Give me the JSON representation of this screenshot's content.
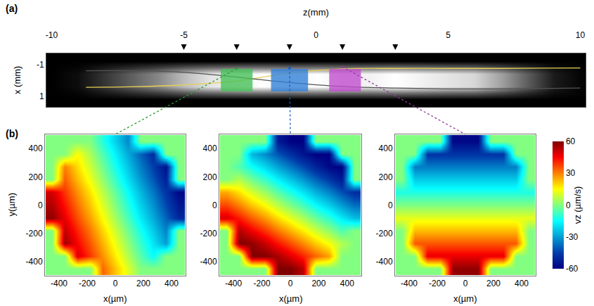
{
  "chart_data": [
    {
      "type": "image",
      "panel_label": "(a)",
      "x_label": "z(mm)",
      "y_label": "x (mm)",
      "xlim": [
        -10.2,
        10.2
      ],
      "xticks": [
        -10,
        -5,
        0,
        5,
        10
      ],
      "ylim": [
        1.7,
        -1.7
      ],
      "yticks": [
        -1,
        1
      ],
      "grid": false,
      "x": [
        -10,
        -9,
        -8,
        -7,
        -6,
        -5,
        -4,
        -3,
        -2,
        -1,
        0,
        1,
        2,
        3,
        4,
        5,
        6,
        7,
        8,
        9,
        10
      ],
      "y": [
        -1.6,
        -1.2,
        -0.8,
        -0.4,
        0,
        0.4,
        0.8,
        1.2,
        1.6
      ],
      "cells": [
        [
          0,
          0,
          0,
          0,
          0,
          0,
          0,
          0,
          0,
          0,
          0,
          0,
          0,
          0,
          0,
          0,
          0,
          0,
          0,
          0,
          0
        ],
        [
          0,
          0,
          0,
          0,
          0,
          0,
          0,
          0,
          0,
          0,
          0,
          0,
          0,
          0,
          0,
          0,
          0,
          0,
          0,
          0,
          0
        ],
        [
          0,
          0.02,
          0.09,
          0.16,
          0.23,
          0.32,
          0.38,
          0.41,
          0.43,
          0.41,
          0.43,
          0.41,
          0.41,
          0.43,
          0.41,
          0.38,
          0.36,
          0.27,
          0.16,
          0.05,
          0.01
        ],
        [
          0,
          0.05,
          0.2,
          0.35,
          0.5,
          0.7,
          0.85,
          0.9,
          0.95,
          0.9,
          0.95,
          0.9,
          0.9,
          0.95,
          0.9,
          0.85,
          0.8,
          0.6,
          0.35,
          0.1,
          0.02
        ],
        [
          0,
          0.05,
          0.2,
          0.35,
          0.5,
          0.7,
          0.85,
          0.9,
          0.95,
          0.9,
          0.95,
          0.9,
          0.9,
          0.95,
          0.9,
          0.85,
          0.8,
          0.6,
          0.35,
          0.1,
          0.02
        ],
        [
          0,
          0.05,
          0.2,
          0.35,
          0.5,
          0.7,
          0.85,
          0.9,
          0.95,
          0.9,
          0.95,
          0.9,
          0.9,
          0.95,
          0.9,
          0.85,
          0.8,
          0.6,
          0.35,
          0.1,
          0.02
        ],
        [
          0,
          0.02,
          0.09,
          0.16,
          0.23,
          0.32,
          0.38,
          0.41,
          0.43,
          0.41,
          0.43,
          0.41,
          0.41,
          0.43,
          0.41,
          0.38,
          0.36,
          0.27,
          0.16,
          0.05,
          0.01
        ],
        [
          0,
          0,
          0,
          0,
          0,
          0,
          0,
          0,
          0,
          0,
          0,
          0,
          0,
          0,
          0,
          0,
          0,
          0,
          0,
          0,
          0
        ],
        [
          0,
          0,
          0,
          0,
          0,
          0,
          0,
          0,
          0,
          0,
          0,
          0,
          0,
          0,
          0,
          0,
          0,
          0,
          0,
          0,
          0
        ]
      ],
      "series": [
        {
          "color": "#e6cf55",
          "x": [
            -8.7,
            -7,
            -5,
            -3,
            -1,
            1,
            3,
            5,
            7,
            10
          ],
          "values": [
            0.45,
            0.42,
            0.3,
            0.05,
            -0.45,
            -0.72,
            -0.75,
            -0.75,
            -0.75,
            -0.78
          ]
        },
        {
          "color": "#555555",
          "x": [
            -8.7,
            -7,
            -5,
            -3,
            -1,
            1,
            3,
            5,
            7,
            10
          ],
          "values": [
            -0.6,
            -0.6,
            -0.5,
            -0.2,
            0.15,
            0.4,
            0.5,
            0.55,
            0.55,
            0.5
          ]
        }
      ],
      "highlights": [
        {
          "from": -3.6,
          "to": -2.4,
          "color": "#43c055"
        },
        {
          "from": -1.7,
          "to": -0.3,
          "color": "#2f7fd8"
        },
        {
          "from": 0.5,
          "to": 1.7,
          "color": "#c04ad0"
        }
      ],
      "markers_z": [
        -5,
        -3,
        -1,
        1,
        3
      ]
    },
    {
      "type": "heatmap",
      "panel_label": "(b)",
      "x_label": "x(µm)",
      "y_label": "y(µm)",
      "xlim": [
        -500,
        500
      ],
      "xticks": [
        -400,
        -200,
        0,
        200,
        400
      ],
      "ylim": [
        -500,
        500
      ],
      "yticks": [
        -400,
        -200,
        0,
        200,
        400
      ],
      "grid": false,
      "x": [
        -450,
        -360,
        -270,
        -180,
        -90,
        0,
        90,
        180,
        270,
        360,
        450
      ],
      "y": [
        -450,
        -360,
        -270,
        -180,
        -90,
        0,
        90,
        180,
        270,
        360,
        450
      ],
      "cells": [
        [
          0,
          0,
          0,
          0,
          33,
          22,
          11,
          0,
          0,
          0,
          0
        ],
        [
          0,
          0,
          49,
          39,
          28,
          17,
          6,
          -5,
          -15,
          0,
          0
        ],
        [
          0,
          56,
          45,
          35,
          24,
          13,
          2,
          -9,
          -19,
          -30,
          0
        ],
        [
          0,
          52,
          41,
          31,
          20,
          9,
          -2,
          -13,
          -23,
          -34,
          0
        ],
        [
          58,
          47,
          36,
          26,
          15,
          4,
          -7,
          -18,
          -28,
          -39,
          -50
        ],
        [
          54,
          43,
          32,
          22,
          11,
          0,
          -11,
          -22,
          -32,
          -43,
          -54
        ],
        [
          50,
          39,
          28,
          18,
          7,
          -4,
          -15,
          -26,
          -36,
          -47,
          -58
        ],
        [
          0,
          34,
          23,
          13,
          2,
          -9,
          -20,
          -31,
          -41,
          -52,
          0
        ],
        [
          0,
          30,
          19,
          9,
          -2,
          -13,
          -24,
          -35,
          -45,
          -56,
          0
        ],
        [
          0,
          0,
          15,
          5,
          -6,
          -17,
          -28,
          -39,
          -49,
          0,
          0
        ],
        [
          0,
          0,
          0,
          0,
          -11,
          -22,
          -33,
          0,
          0,
          0,
          0
        ]
      ],
      "link": {
        "z": -3,
        "x": -0.73,
        "color": "#2f9a3c",
        "target": {
          "x": 0,
          "y": 500
        }
      }
    },
    {
      "type": "heatmap",
      "x_label": "x(µm)",
      "xlim": [
        -500,
        500
      ],
      "xticks": [
        -400,
        -200,
        0,
        200,
        400
      ],
      "ylim": [
        -500,
        500
      ],
      "yticks": [
        -400,
        -200,
        0,
        200,
        400
      ],
      "grid": false,
      "x": [
        -450,
        -360,
        -270,
        -180,
        -90,
        0,
        90,
        180,
        270,
        360,
        450
      ],
      "y": [
        -450,
        -360,
        -270,
        -180,
        -90,
        0,
        90,
        180,
        270,
        360,
        450
      ],
      "cells": [
        [
          0,
          0,
          0,
          0,
          60,
          60,
          53,
          0,
          0,
          0,
          0
        ],
        [
          0,
          0,
          60,
          60,
          55,
          48,
          41,
          33,
          26,
          0,
          0
        ],
        [
          0,
          60,
          58,
          51,
          43,
          36,
          29,
          21,
          14,
          6,
          0
        ],
        [
          0,
          54,
          46,
          39,
          31,
          24,
          17,
          9,
          2,
          -6,
          0
        ],
        [
          49,
          42,
          34,
          27,
          19,
          12,
          5,
          -3,
          -10,
          -18,
          -25
        ],
        [
          37,
          30,
          22,
          15,
          7,
          0,
          -7,
          -15,
          -22,
          -30,
          -37
        ],
        [
          25,
          18,
          10,
          3,
          -5,
          -12,
          -19,
          -27,
          -34,
          -42,
          -49
        ],
        [
          0,
          6,
          -2,
          -9,
          -17,
          -24,
          -31,
          -39,
          -46,
          -54,
          0
        ],
        [
          0,
          -6,
          -14,
          -21,
          -29,
          -36,
          -43,
          -51,
          -58,
          -60,
          0
        ],
        [
          0,
          0,
          -26,
          -33,
          -41,
          -48,
          -55,
          -60,
          -60,
          0,
          0
        ],
        [
          0,
          0,
          0,
          0,
          -53,
          -60,
          -60,
          0,
          0,
          0,
          0
        ]
      ],
      "link": {
        "z": -1,
        "x": -0.78,
        "color": "#1c5fc0",
        "target": {
          "x": 0,
          "y": 500
        }
      }
    },
    {
      "type": "heatmap",
      "x_label": "x(µm)",
      "xlim": [
        -500,
        500
      ],
      "xticks": [
        -400,
        -200,
        0,
        200,
        400
      ],
      "ylim": [
        -500,
        500
      ],
      "yticks": [
        -400,
        -200,
        0,
        200,
        400
      ],
      "grid": false,
      "x": [
        -450,
        -360,
        -270,
        -180,
        -90,
        0,
        90,
        180,
        270,
        360,
        450
      ],
      "y": [
        -450,
        -360,
        -270,
        -180,
        -90,
        0,
        90,
        180,
        270,
        360,
        450
      ],
      "cells": [
        [
          0,
          0,
          0,
          0,
          58,
          58,
          58,
          0,
          0,
          0,
          0
        ],
        [
          0,
          0,
          47,
          47,
          47,
          47,
          47,
          47,
          47,
          0,
          0
        ],
        [
          0,
          35,
          35,
          35,
          35,
          35,
          35,
          35,
          35,
          35,
          0
        ],
        [
          0,
          23,
          23,
          23,
          23,
          23,
          23,
          23,
          23,
          23,
          0
        ],
        [
          12,
          12,
          12,
          12,
          12,
          12,
          12,
          12,
          12,
          12,
          12
        ],
        [
          0,
          0,
          0,
          0,
          0,
          0,
          0,
          0,
          0,
          0,
          0
        ],
        [
          -12,
          -12,
          -12,
          -12,
          -12,
          -12,
          -12,
          -12,
          -12,
          -12,
          -12
        ],
        [
          0,
          -23,
          -23,
          -23,
          -23,
          -23,
          -23,
          -23,
          -23,
          -23,
          0
        ],
        [
          0,
          -35,
          -35,
          -35,
          -35,
          -35,
          -35,
          -35,
          -35,
          -35,
          0
        ],
        [
          0,
          0,
          -47,
          -47,
          -47,
          -47,
          -47,
          -47,
          -47,
          0,
          0
        ],
        [
          0,
          0,
          0,
          0,
          -58,
          -58,
          -58,
          0,
          0,
          0,
          0
        ]
      ],
      "link": {
        "z": 1,
        "x": -0.85,
        "color": "#8e3a9a",
        "target": {
          "x": 0,
          "y": 500
        }
      },
      "colorbar": {
        "label": "vz (µm/s)",
        "range": [
          -60,
          60
        ],
        "ticks": [
          -60,
          -30,
          0,
          30,
          60
        ]
      }
    }
  ]
}
